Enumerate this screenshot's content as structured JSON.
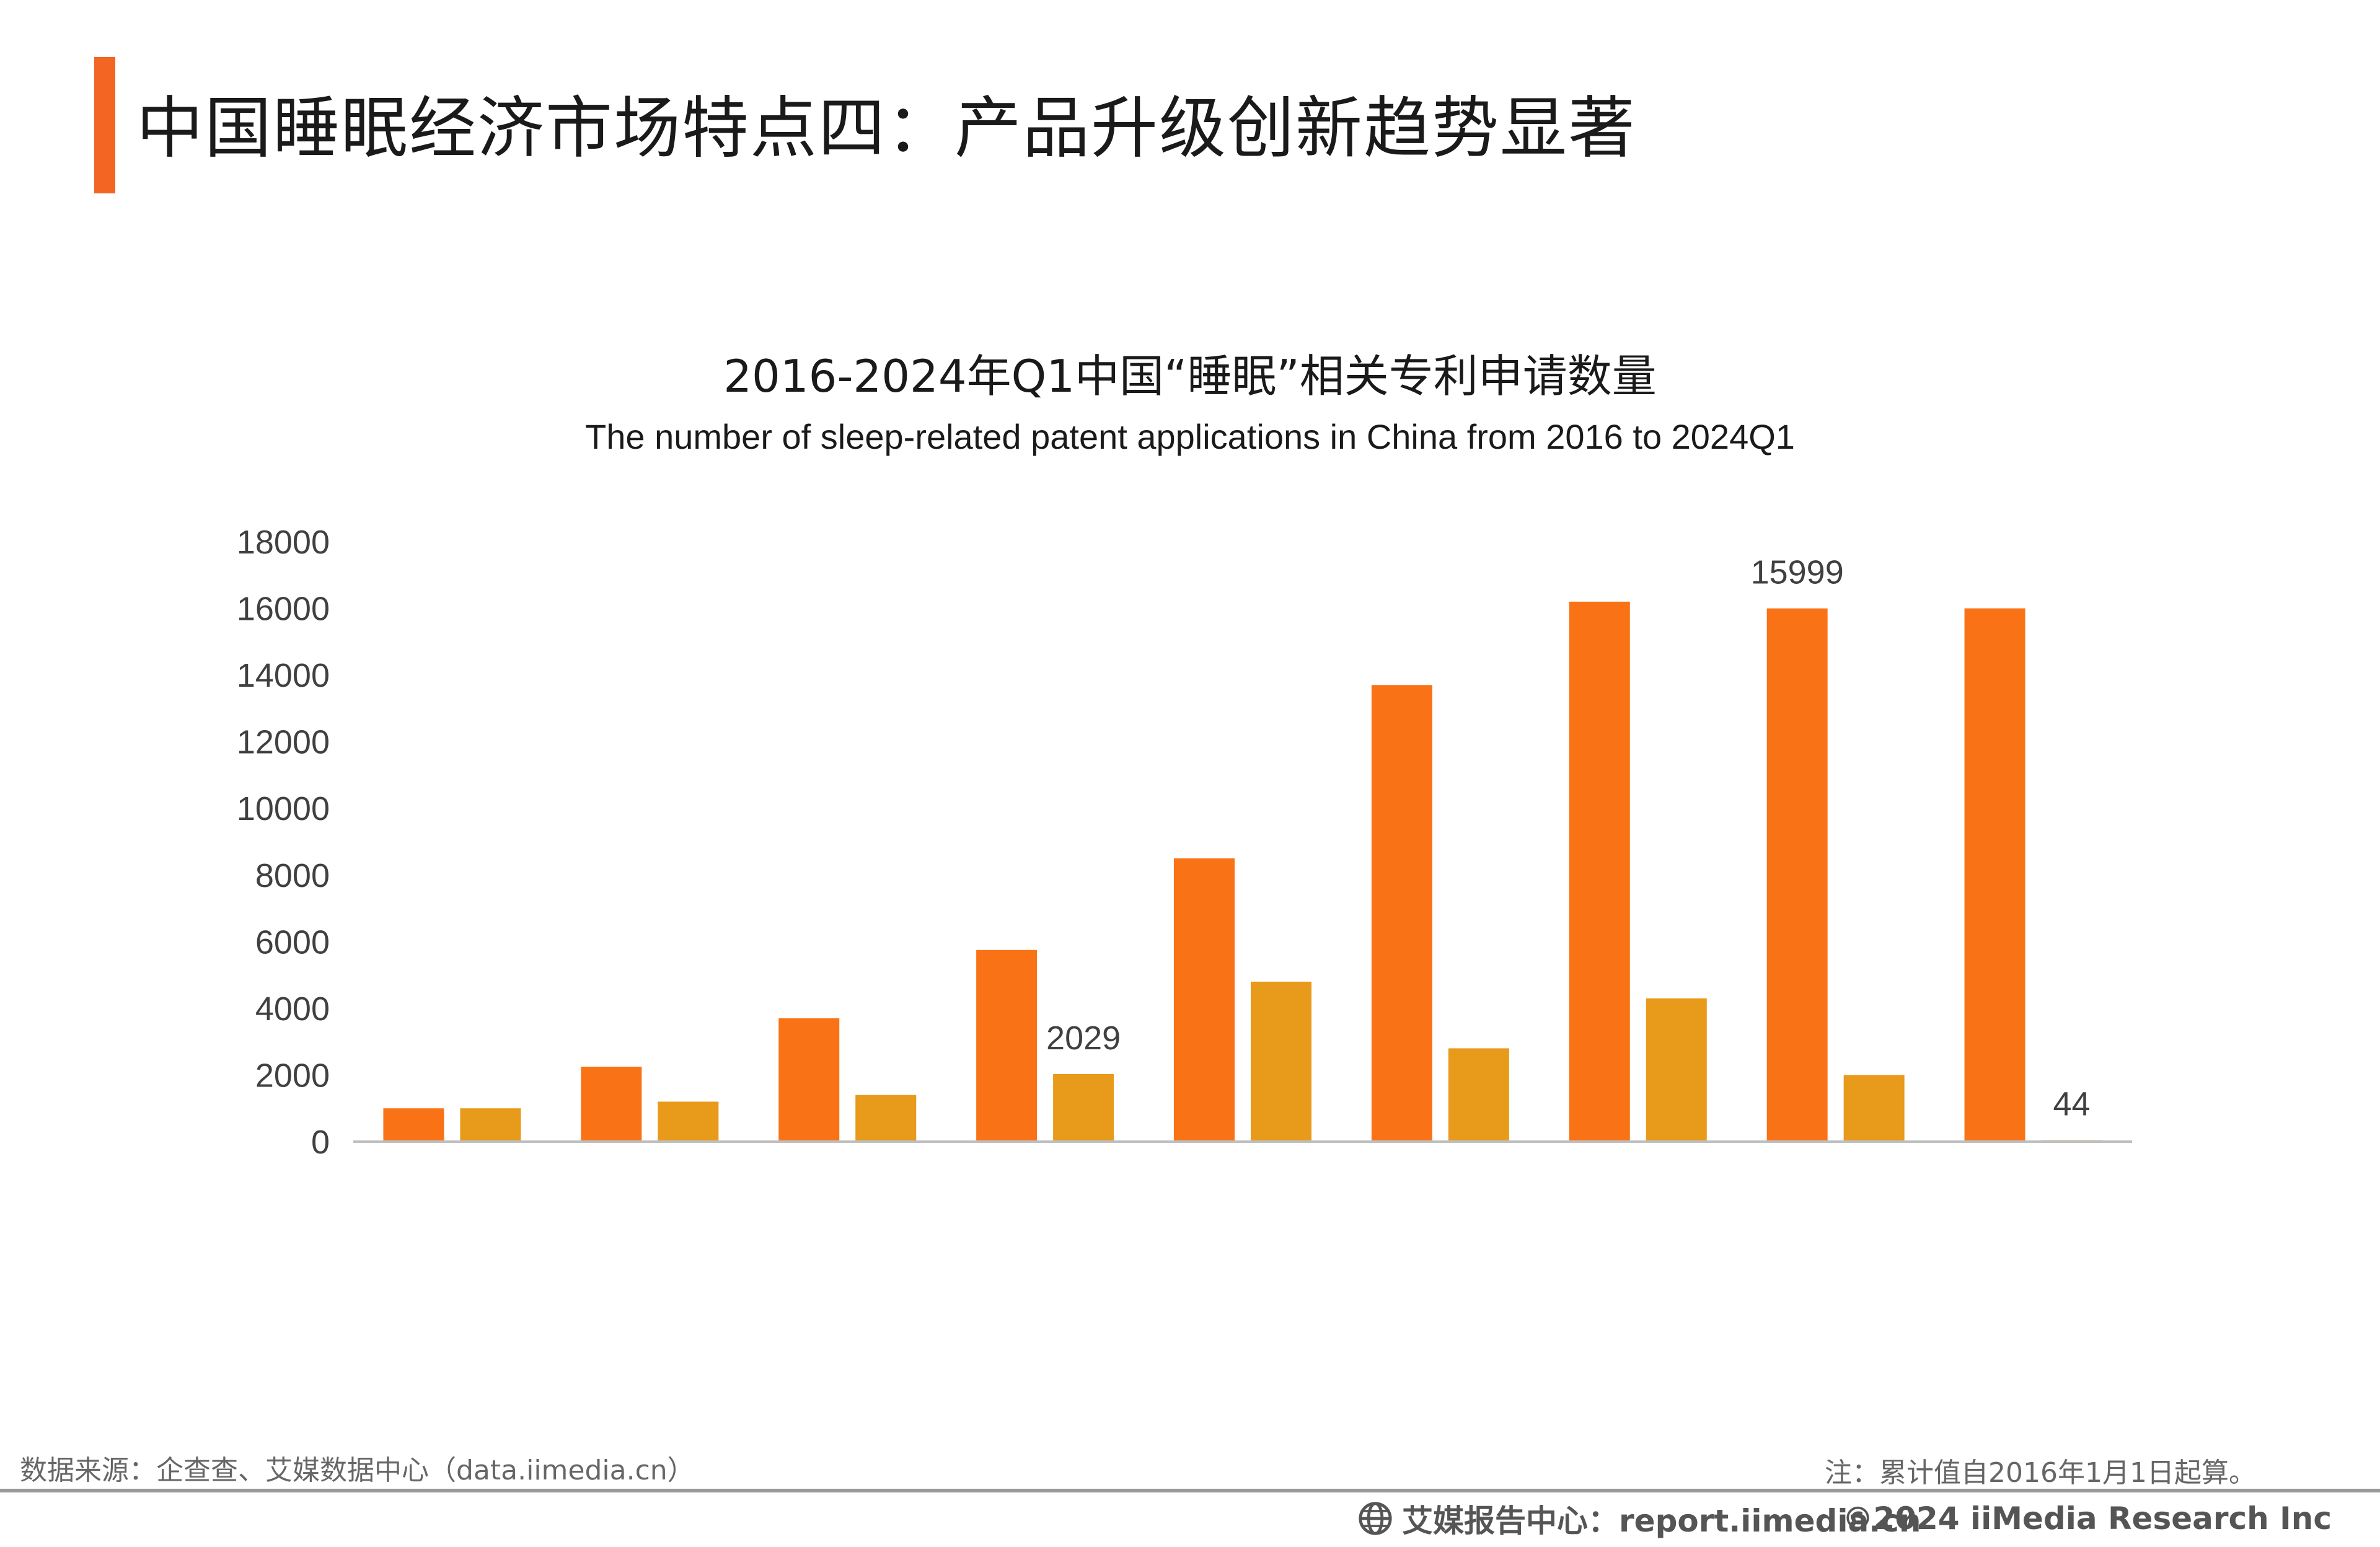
{
  "header": {
    "title": "中国睡眠经济市场特点四：产品升级创新趋势显著",
    "accent_color": "#f26522"
  },
  "chart_data": {
    "type": "bar",
    "title": "2016-2024年Q1中国“睡眠”相关专利申请数量",
    "subtitle": "The number of sleep-related patent applications in China from 2016 to 2024Q1",
    "xlabel": "",
    "ylabel": "",
    "ylim": [
      0,
      18000
    ],
    "yticks": [
      "0",
      "2000",
      "4000",
      "6000",
      "8000",
      "10000",
      "12000",
      "14000",
      "16000",
      "18000"
    ],
    "grid": false,
    "categories": [
      "",
      "",
      "",
      "",
      "",
      "",
      "",
      "",
      ""
    ],
    "series": [
      {
        "color": "#f97316",
        "values": [
          1000,
          2250,
          3700,
          5750,
          8500,
          13700,
          16200,
          15999,
          16000
        ]
      },
      {
        "color": "#e89a1a",
        "values": [
          1000,
          1200,
          1400,
          2029,
          4800,
          2800,
          4300,
          2000,
          44
        ]
      }
    ],
    "data_labels": [
      {
        "series": 1,
        "index": 3,
        "text": "2029"
      },
      {
        "series": 0,
        "index": 7,
        "text": "15999"
      },
      {
        "series": 1,
        "index": 8,
        "text": "44"
      }
    ]
  },
  "footer": {
    "source": "数据来源：企查查、艾媒数据中心（data.iimedia.cn）",
    "note": "注：累计值自2016年1月1日起算。",
    "report_site": "艾媒报告中心：report.iimedia.cn",
    "copyright": "©2024  iiMedia Research Inc"
  }
}
